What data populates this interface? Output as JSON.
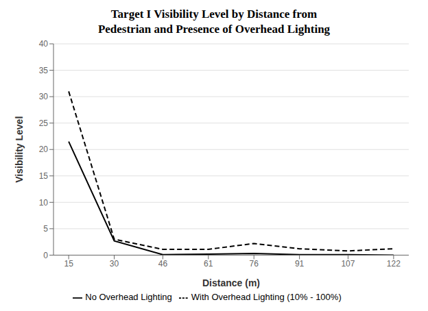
{
  "chart_data": {
    "type": "line",
    "title": "Target I Visibility Level by Distance from\nPedestrian and Presence of Overhead Lighting",
    "x_label": "Distance (m)",
    "y_label": "Visibility Level",
    "x": [
      15,
      30,
      46,
      61,
      76,
      91,
      107,
      122
    ],
    "series": [
      {
        "name": "With Overhead Lighting (10% - 100%)",
        "color": "#000000",
        "line_style": "dashed",
        "values": [
          31.0,
          3.0,
          1.1,
          1.1,
          2.2,
          1.2,
          0.8,
          1.2
        ]
      },
      {
        "name": "No Overhead Lighting",
        "color": "#000000",
        "line_style": "solid",
        "values": [
          21.5,
          2.7,
          0.1,
          0.2,
          0.3,
          0.1,
          0.1,
          0.0
        ]
      }
    ],
    "xlim": [
      10,
      127
    ],
    "xticks": [
      15,
      30,
      46,
      61,
      76,
      91,
      107,
      122
    ],
    "ylim": [
      0,
      40
    ],
    "yticks": [
      0,
      5,
      10,
      15,
      20,
      25,
      30,
      35,
      40
    ],
    "grid": true,
    "legend": "bottom"
  }
}
